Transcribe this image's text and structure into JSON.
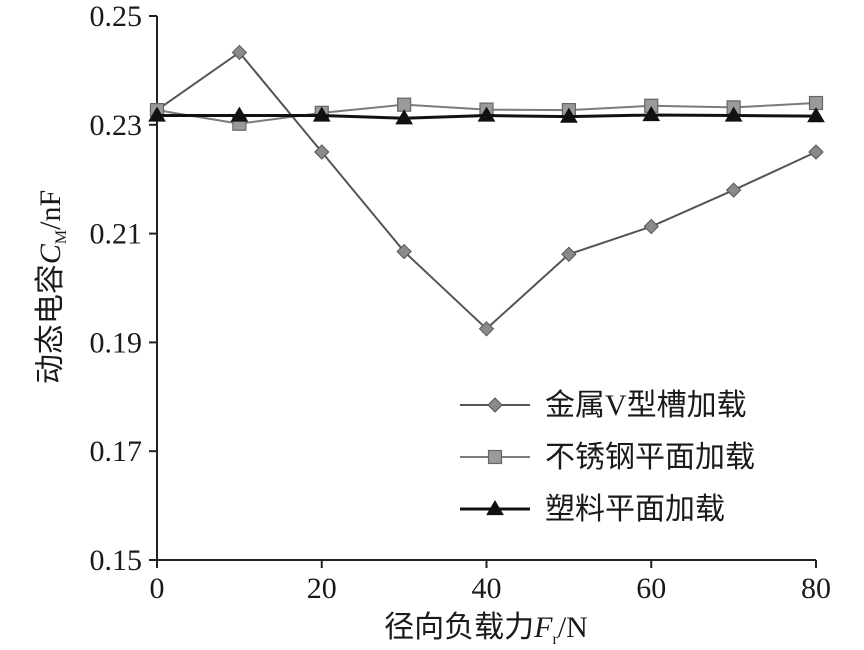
{
  "chart_data": {
    "type": "line",
    "xlabel": "径向负载力F_r/N",
    "xlabel_parts": {
      "text": "径向负载力",
      "symbol": "F",
      "subscript": "r",
      "unit": "/N"
    },
    "ylabel": "动态电容C_M/nF",
    "ylabel_parts": {
      "text": "动态电容",
      "symbol": "C",
      "subscript": "M",
      "unit": "/nF"
    },
    "xlim": [
      0,
      80
    ],
    "ylim": [
      0.15,
      0.25
    ],
    "xticks": [
      0,
      20,
      40,
      60,
      80
    ],
    "xtick_labels": [
      "0",
      "20",
      "40",
      "60",
      "80"
    ],
    "yticks": [
      0.15,
      0.17,
      0.19,
      0.21,
      0.23,
      0.25
    ],
    "ytick_labels": [
      "0.15",
      "0.17",
      "0.19",
      "0.21",
      "0.23",
      "0.25"
    ],
    "grid": false,
    "legend_position": "bottom-right",
    "x": [
      0,
      10,
      20,
      30,
      40,
      50,
      60,
      70,
      80
    ],
    "series": [
      {
        "name": "金属V型槽加载",
        "marker": "diamond",
        "color": "#555555",
        "marker_color": "#8a8a8a",
        "values": [
          0.2327,
          0.2433,
          0.225,
          0.2067,
          0.1925,
          0.2062,
          0.2113,
          0.218,
          0.225
        ]
      },
      {
        "name": "不锈钢平面加载",
        "marker": "square",
        "color": "#7a7a7a",
        "marker_color": "#9a9a9a",
        "values": [
          0.2327,
          0.2302,
          0.2322,
          0.2337,
          0.2328,
          0.2327,
          0.2335,
          0.2332,
          0.234
        ]
      },
      {
        "name": "塑料平面加载",
        "marker": "triangle",
        "color": "#111111",
        "marker_color": "#111111",
        "values": [
          0.2317,
          0.2317,
          0.2317,
          0.2312,
          0.2317,
          0.2315,
          0.2318,
          0.2317,
          0.2316
        ]
      }
    ]
  }
}
